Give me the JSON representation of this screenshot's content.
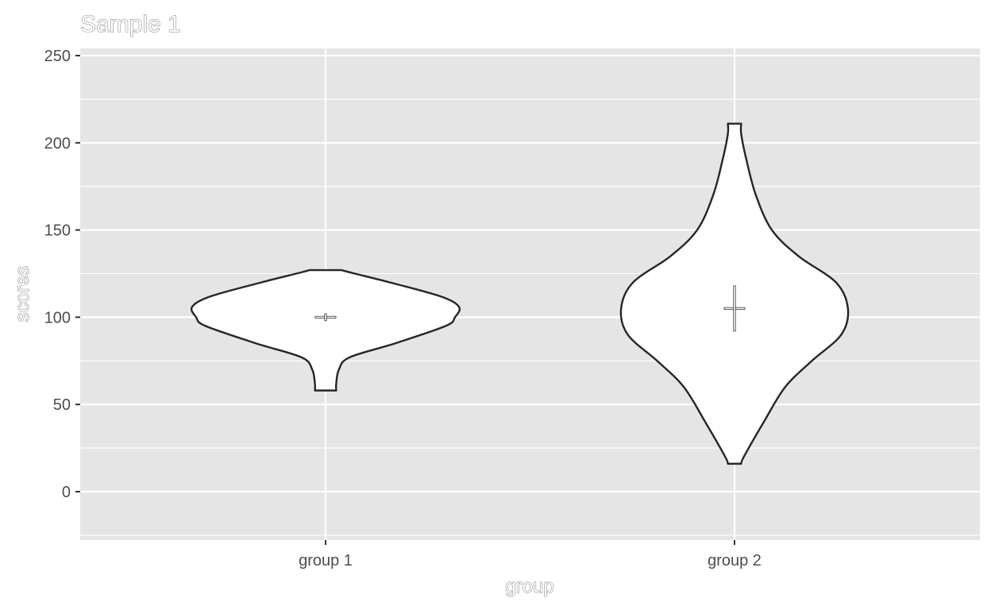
{
  "chart_data": {
    "type": "violin",
    "title": "Sample 1",
    "xlabel": "group",
    "ylabel": "scores",
    "categories": [
      "group 1",
      "group 2"
    ],
    "ylim": [
      -25,
      252
    ],
    "yticks": [
      0,
      50,
      100,
      150,
      200,
      250
    ],
    "grid": true,
    "legend": "none",
    "colors": {
      "panel_bg": "#e5e5e5",
      "grid": "#ffffff",
      "violin_fill": "#ffffff",
      "violin_stroke": "#262626",
      "tick_text": "#4d4d4d"
    },
    "series": [
      {
        "category": "group 1",
        "min": 58,
        "max": 127,
        "mean": 100,
        "se_low": 98,
        "se_high": 102,
        "density_profile": [
          {
            "y": 58,
            "w": 0.08
          },
          {
            "y": 62,
            "w": 0.08
          },
          {
            "y": 70,
            "w": 0.1
          },
          {
            "y": 77,
            "w": 0.18
          },
          {
            "y": 85,
            "w": 0.52
          },
          {
            "y": 95,
            "w": 0.9
          },
          {
            "y": 100,
            "w": 0.97
          },
          {
            "y": 106,
            "w": 1.0
          },
          {
            "y": 112,
            "w": 0.86
          },
          {
            "y": 120,
            "w": 0.48
          },
          {
            "y": 125,
            "w": 0.22
          },
          {
            "y": 127,
            "w": 0.12
          }
        ]
      },
      {
        "category": "group 2",
        "min": 16,
        "max": 211,
        "mean": 105,
        "se_low": 92,
        "se_high": 118,
        "density_profile": [
          {
            "y": 16,
            "w": 0.05
          },
          {
            "y": 20,
            "w": 0.07
          },
          {
            "y": 40,
            "w": 0.22
          },
          {
            "y": 60,
            "w": 0.38
          },
          {
            "y": 75,
            "w": 0.58
          },
          {
            "y": 90,
            "w": 0.8
          },
          {
            "y": 105,
            "w": 0.85
          },
          {
            "y": 120,
            "w": 0.76
          },
          {
            "y": 135,
            "w": 0.48
          },
          {
            "y": 150,
            "w": 0.28
          },
          {
            "y": 170,
            "w": 0.16
          },
          {
            "y": 190,
            "w": 0.09
          },
          {
            "y": 205,
            "w": 0.05
          },
          {
            "y": 211,
            "w": 0.05
          }
        ]
      }
    ]
  }
}
